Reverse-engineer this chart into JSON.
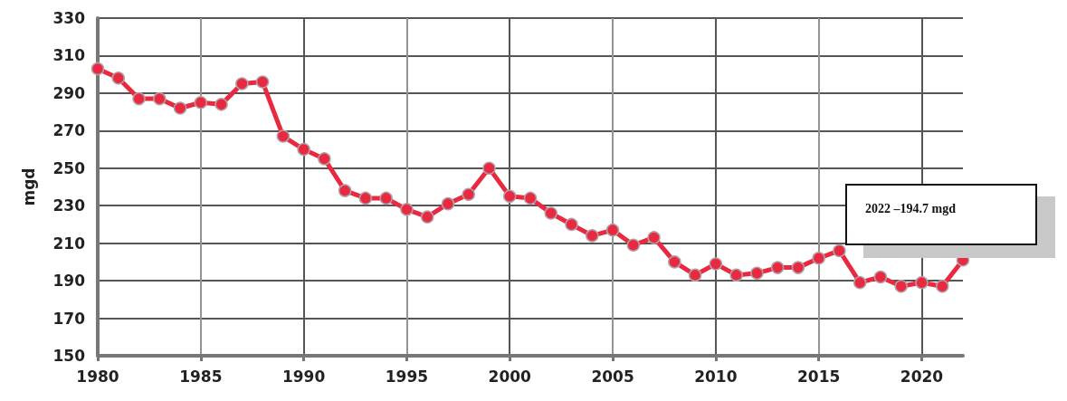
{
  "chart_data": {
    "type": "line",
    "ylabel": "mgd",
    "x": [
      1980,
      1981,
      1982,
      1983,
      1984,
      1985,
      1986,
      1987,
      1988,
      1989,
      1990,
      1991,
      1992,
      1993,
      1994,
      1995,
      1996,
      1997,
      1998,
      1999,
      2000,
      2001,
      2002,
      2003,
      2004,
      2005,
      2006,
      2007,
      2008,
      2009,
      2010,
      2011,
      2012,
      2013,
      2014,
      2015,
      2016,
      2017,
      2018,
      2019,
      2020,
      2021,
      2022
    ],
    "series": [
      {
        "color": "#e8293f",
        "values": [
          303,
          298,
          287,
          287,
          282,
          285,
          284,
          295,
          296,
          267,
          260,
          255,
          238,
          234,
          234,
          228,
          224,
          231,
          236,
          250,
          235,
          234,
          226,
          220,
          214,
          217,
          209,
          213,
          200,
          193,
          199,
          193,
          194,
          197,
          197,
          202,
          206,
          189,
          192,
          187,
          189,
          187,
          201
        ]
      }
    ],
    "xlim": [
      1980,
      2022
    ],
    "xticks": [
      1980,
      1985,
      1990,
      1995,
      2000,
      2005,
      2010,
      2015,
      2020
    ],
    "ylim": [
      150,
      330
    ],
    "yticks": [
      150,
      170,
      190,
      210,
      230,
      250,
      270,
      290,
      310,
      330
    ],
    "grid": true,
    "marker": "circle",
    "line_style": "solid",
    "annotations": [
      "2022 –194.7 mgd"
    ]
  }
}
